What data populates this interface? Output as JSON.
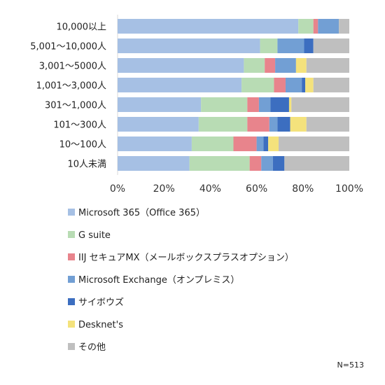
{
  "chart_data": {
    "type": "bar",
    "orientation": "horizontal",
    "stacked": "percent",
    "categories": [
      "10,000以上",
      "5,001～10,000人",
      "3,001～5000人",
      "1,001～3,000人",
      "301～1,000人",
      "101～300人",
      "10～100人",
      "10人未満"
    ],
    "series": [
      {
        "name": "Microsoft 365（Office 365）",
        "color": "#a6c0e4",
        "values": [
          78,
          61.5,
          54.5,
          53.5,
          36,
          35,
          32,
          31
        ]
      },
      {
        "name": "G suite",
        "color": "#b8dcb4",
        "values": [
          6.5,
          7.5,
          9,
          14,
          20,
          21,
          18,
          26
        ]
      },
      {
        "name": "IIJ セキュアMX（メールボックスプラスオプション）",
        "color": "#e8848c",
        "values": [
          2,
          0,
          4.5,
          5,
          5,
          9.5,
          10,
          5
        ]
      },
      {
        "name": "Microsoft Exchange（オンプレミス）",
        "color": "#729fd4",
        "values": [
          9,
          11.5,
          9,
          7,
          5,
          3.5,
          3,
          5
        ]
      },
      {
        "name": "サイボウズ",
        "color": "#3c6ec0",
        "values": [
          0,
          4,
          0,
          1.5,
          8,
          5.5,
          2,
          5
        ]
      },
      {
        "name": "Desknet's",
        "color": "#f4e27c",
        "values": [
          0,
          0,
          4.5,
          3.5,
          1,
          7,
          4.5,
          0
        ]
      },
      {
        "name": "その他",
        "color": "#bfbfbf",
        "values": [
          4.5,
          15.5,
          18.5,
          15.5,
          25,
          18.5,
          30.5,
          28
        ]
      }
    ],
    "xlim": [
      0,
      100
    ],
    "xticks": [
      "0%",
      "20%",
      "40%",
      "60%",
      "80%",
      "100%"
    ],
    "legend_position": "bottom",
    "grid": false,
    "annotation": "N=513"
  }
}
